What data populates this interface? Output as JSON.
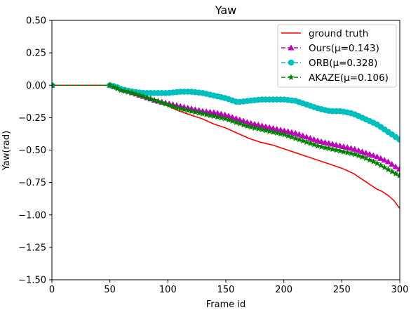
{
  "chart_data": {
    "type": "line",
    "title": "Yaw",
    "xlabel": "Frame id",
    "ylabel": "Yaw(rad)",
    "xlim": [
      0,
      300
    ],
    "ylim": [
      -1.5,
      0.5
    ],
    "x_ticks": [
      0,
      50,
      100,
      150,
      200,
      250,
      300
    ],
    "y_ticks": [
      0.5,
      0.25,
      0.0,
      -0.25,
      -0.5,
      -0.75,
      -1.0,
      -1.25,
      -1.5
    ],
    "x_tick_labels": [
      "0",
      "50",
      "100",
      "150",
      "200",
      "250",
      "300"
    ],
    "y_tick_labels": [
      "0.50",
      "0.25",
      "0.00",
      "−0.25",
      "−0.50",
      "−0.75",
      "−1.00",
      "−1.25",
      "−1.50"
    ],
    "grid": false,
    "legend_position": "top-right",
    "series": [
      {
        "name": "ground truth",
        "color": "#ff0000",
        "style": "solid",
        "marker": "none",
        "x": [
          0,
          10,
          20,
          30,
          40,
          50,
          55,
          60,
          70,
          80,
          90,
          100,
          110,
          120,
          130,
          140,
          150,
          160,
          170,
          180,
          190,
          200,
          210,
          220,
          230,
          240,
          250,
          255,
          260,
          265,
          270,
          275,
          280,
          285,
          290,
          295,
          300
        ],
        "y": [
          0.0,
          0.0,
          0.0,
          0.0,
          0.0,
          0.0,
          -0.02,
          -0.04,
          -0.07,
          -0.1,
          -0.13,
          -0.16,
          -0.2,
          -0.23,
          -0.26,
          -0.3,
          -0.33,
          -0.37,
          -0.41,
          -0.44,
          -0.46,
          -0.49,
          -0.52,
          -0.55,
          -0.58,
          -0.61,
          -0.64,
          -0.66,
          -0.68,
          -0.71,
          -0.74,
          -0.77,
          -0.8,
          -0.82,
          -0.85,
          -0.89,
          -0.95
        ]
      },
      {
        "name": "Ours(μ=0.143)",
        "color": "#bf00bf",
        "style": "dashed",
        "marker": "triangle",
        "x": [
          0,
          50,
          55,
          60,
          70,
          80,
          90,
          100,
          110,
          120,
          130,
          140,
          150,
          160,
          170,
          180,
          190,
          200,
          210,
          220,
          230,
          240,
          250,
          260,
          270,
          280,
          290,
          300
        ],
        "y": [
          0.0,
          0.0,
          -0.01,
          -0.03,
          -0.06,
          -0.09,
          -0.12,
          -0.14,
          -0.16,
          -0.18,
          -0.2,
          -0.21,
          -0.23,
          -0.26,
          -0.29,
          -0.31,
          -0.33,
          -0.35,
          -0.37,
          -0.4,
          -0.43,
          -0.45,
          -0.47,
          -0.49,
          -0.52,
          -0.55,
          -0.59,
          -0.65
        ]
      },
      {
        "name": "ORB(μ=0.328)",
        "color": "#00bfbf",
        "style": "dashed",
        "marker": "circle",
        "x": [
          0,
          50,
          55,
          60,
          65,
          70,
          80,
          90,
          100,
          110,
          120,
          130,
          140,
          150,
          160,
          170,
          180,
          190,
          200,
          210,
          220,
          230,
          240,
          250,
          260,
          270,
          280,
          290,
          300
        ],
        "y": [
          0.0,
          0.0,
          -0.01,
          -0.03,
          -0.04,
          -0.05,
          -0.06,
          -0.06,
          -0.06,
          -0.05,
          -0.05,
          -0.06,
          -0.08,
          -0.1,
          -0.13,
          -0.12,
          -0.11,
          -0.11,
          -0.11,
          -0.12,
          -0.15,
          -0.18,
          -0.2,
          -0.2,
          -0.22,
          -0.26,
          -0.3,
          -0.36,
          -0.42
        ]
      },
      {
        "name": "AKAZE(μ=0.106)",
        "color": "#008000",
        "style": "dashed",
        "marker": "star",
        "x": [
          0,
          50,
          55,
          60,
          70,
          80,
          90,
          100,
          110,
          120,
          130,
          140,
          150,
          160,
          170,
          180,
          190,
          200,
          210,
          220,
          230,
          240,
          250,
          260,
          270,
          280,
          290,
          300
        ],
        "y": [
          0.0,
          0.0,
          -0.02,
          -0.04,
          -0.06,
          -0.09,
          -0.12,
          -0.15,
          -0.18,
          -0.2,
          -0.22,
          -0.24,
          -0.26,
          -0.29,
          -0.32,
          -0.34,
          -0.36,
          -0.38,
          -0.41,
          -0.44,
          -0.47,
          -0.49,
          -0.51,
          -0.53,
          -0.56,
          -0.6,
          -0.65,
          -0.7
        ]
      }
    ]
  }
}
